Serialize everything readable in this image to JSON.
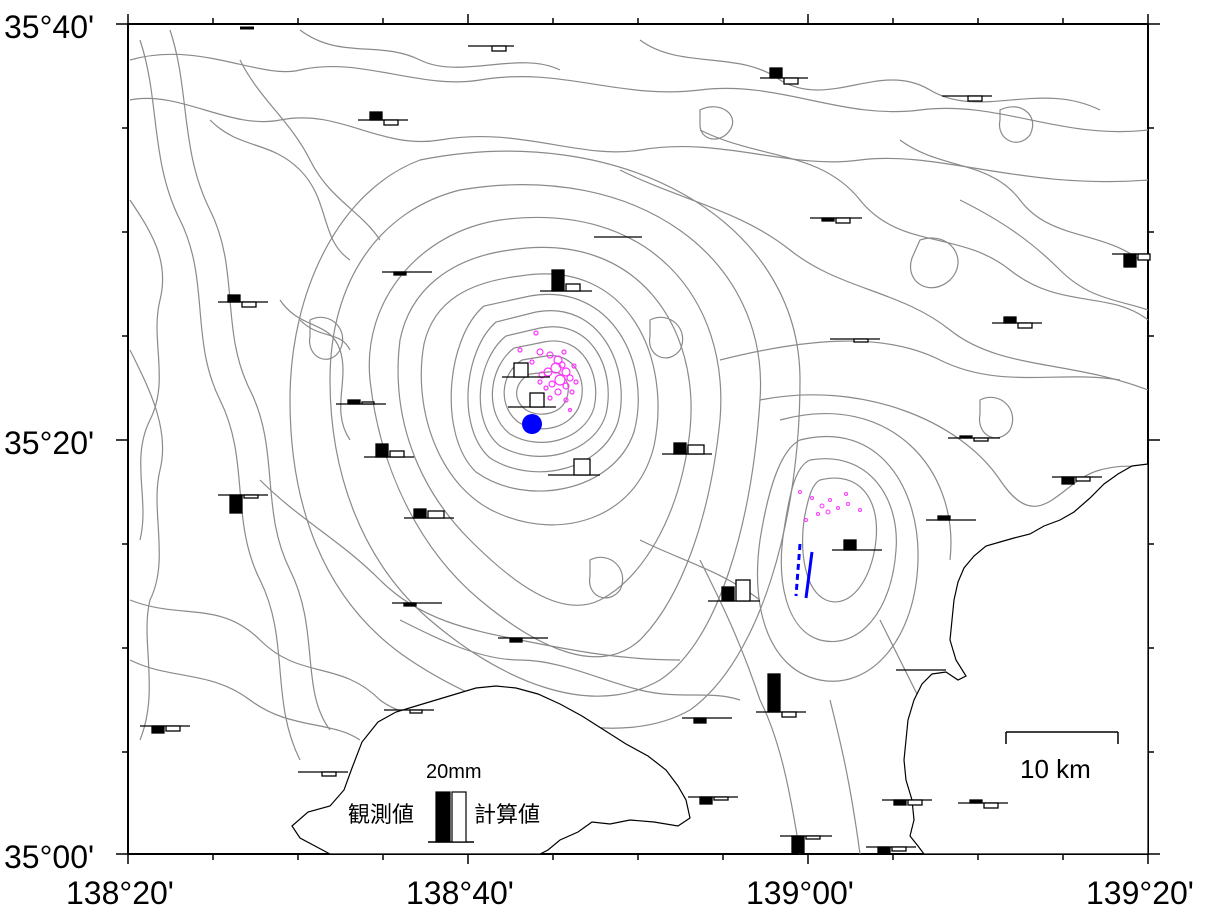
{
  "map": {
    "lat_labels": [
      "35°40'",
      "35°20'",
      "35°00'"
    ],
    "lon_labels": [
      "138°20'",
      "138°40'",
      "139°00'",
      "139°20'"
    ],
    "legend": {
      "scale_value": "20mm",
      "observed_label": "観測値",
      "computed_label": "計算値"
    },
    "scale_bar_label": "10 km",
    "colors": {
      "contour": "#8a8a8a",
      "coast": "#000000",
      "epicenter": "#ff33ff",
      "source": "#0000ff",
      "observed_bar": "#000000",
      "computed_bar": "#ffffff"
    }
  }
}
